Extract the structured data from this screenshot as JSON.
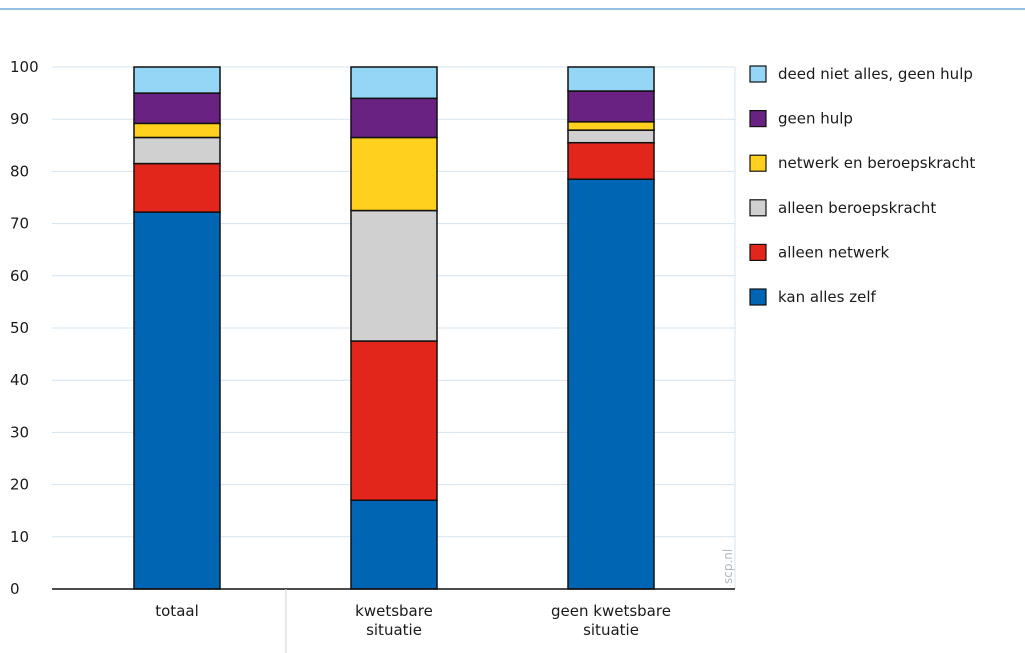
{
  "chart_data": {
    "type": "bar",
    "stacked": true,
    "categories": [
      [
        "totaal"
      ],
      [
        "kwetsbare",
        "situatie"
      ],
      [
        "geen kwetsbare",
        "situatie"
      ]
    ],
    "series": [
      {
        "name": "kan alles zelf",
        "color": "#0066b3",
        "values": [
          72.2,
          17.0,
          78.5
        ]
      },
      {
        "name": "alleen netwerk",
        "color": "#e2261c",
        "values": [
          9.3,
          30.5,
          7.0
        ]
      },
      {
        "name": "alleen beroepskracht",
        "color": "#d0d0d0",
        "values": [
          5.0,
          25.0,
          2.4
        ]
      },
      {
        "name": "netwerk en beroepskracht",
        "color": "#ffd01e",
        "values": [
          2.7,
          14.0,
          1.6
        ]
      },
      {
        "name": "geen hulp",
        "color": "#6a2282",
        "values": [
          5.8,
          7.5,
          5.9
        ]
      },
      {
        "name": "deed niet alles, geen hulp",
        "color": "#95d5f5",
        "values": [
          5.0,
          6.0,
          4.6
        ]
      }
    ],
    "ylim": [
      0,
      100
    ],
    "yticks": [
      0,
      10,
      20,
      30,
      40,
      50,
      60,
      70,
      80,
      90,
      100
    ],
    "grid": true,
    "legend": "right",
    "watermark": "scp.nl"
  }
}
